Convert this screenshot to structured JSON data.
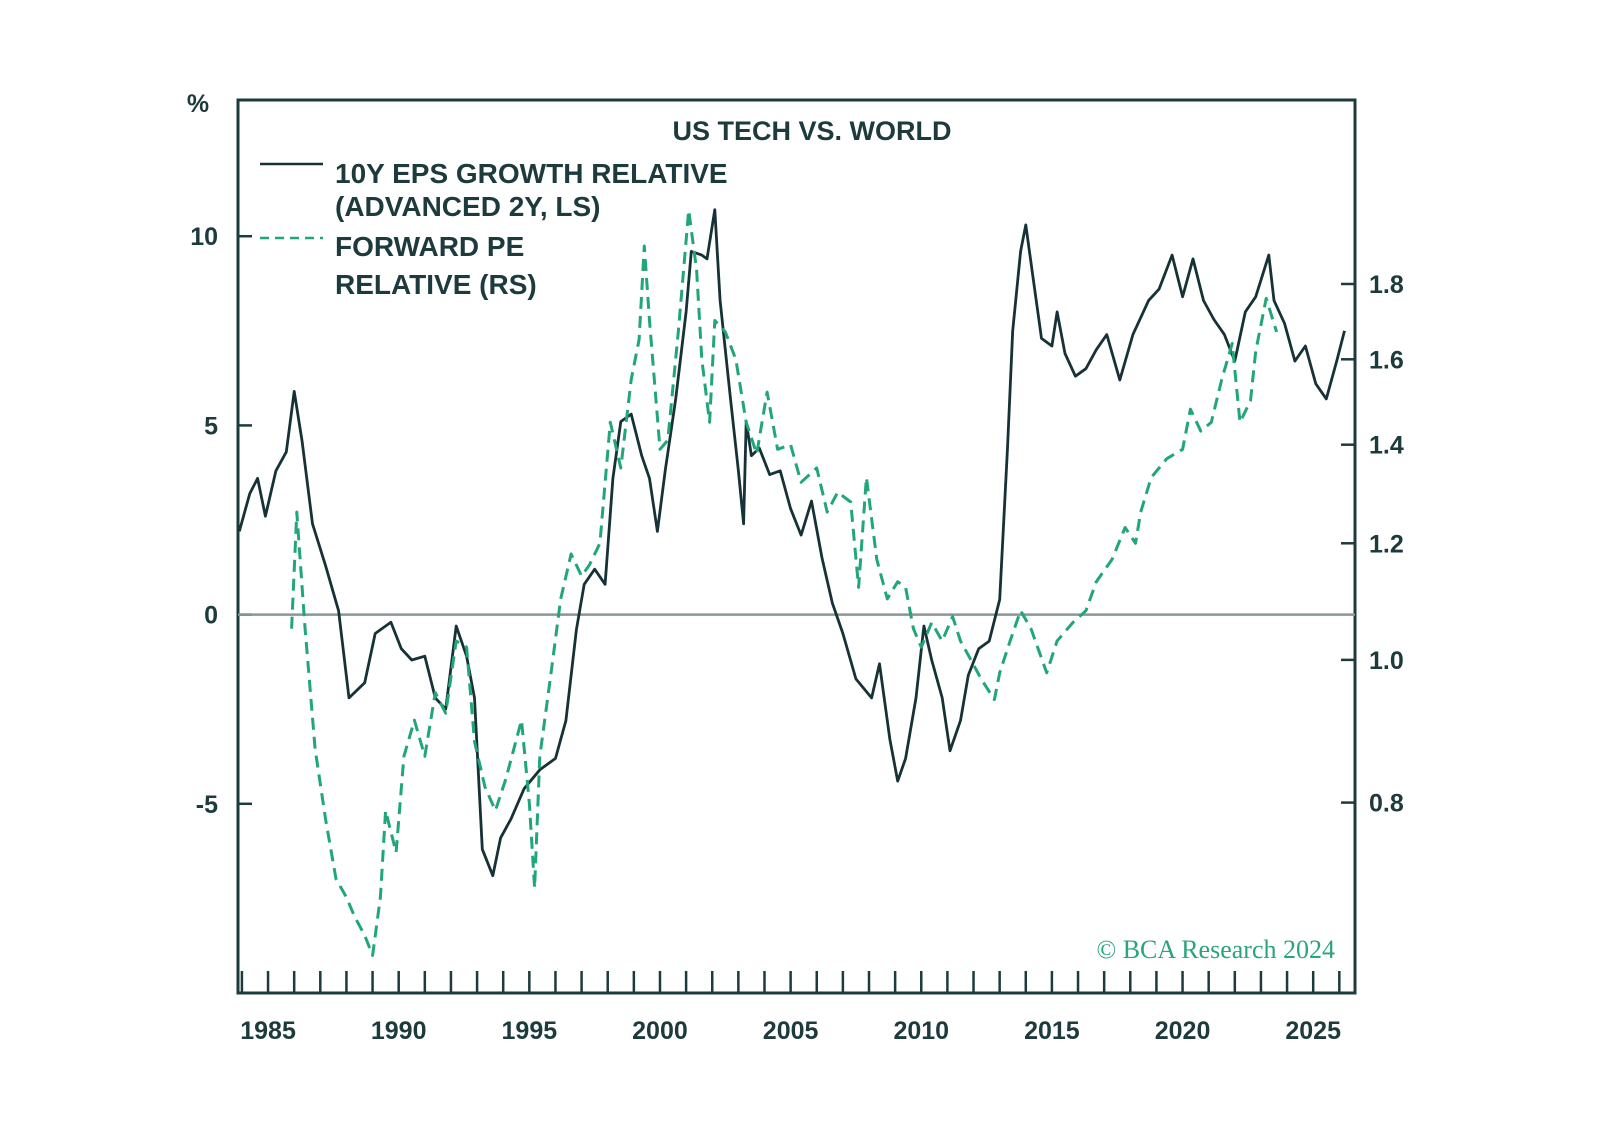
{
  "chart_data": {
    "type": "line",
    "title": "US TECH VS. WORLD",
    "left_axis_unit": "%",
    "x_range": [
      1983.85,
      2026.6
    ],
    "x_ticks": [
      1985,
      1990,
      1995,
      2000,
      2005,
      2010,
      2015,
      2020,
      2025
    ],
    "left_axis": {
      "range": [
        -10,
        13.6
      ],
      "ticks": [
        10,
        5,
        0,
        -5
      ],
      "tick_labels": [
        "10",
        "5",
        "0",
        "-5"
      ]
    },
    "right_axis": {
      "scale": "log",
      "range": [
        0.594,
        2.4
      ],
      "ticks": [
        1.8,
        1.6,
        1.4,
        1.2,
        1.0,
        0.8
      ],
      "tick_labels": [
        "1.8",
        "1.6",
        "1.4",
        "1.2",
        "1.0",
        "0.8"
      ]
    },
    "zero_line": true,
    "grid": false,
    "legend_placement": "top-left",
    "colors": {
      "eps": "#173236",
      "pe": "#21a67a",
      "axis": "#1d3a3c",
      "zero": "#8a9696"
    },
    "series": [
      {
        "name": "10Y EPS GROWTH RELATIVE (ADVANCED 2Y, LS)",
        "legend_lines": [
          "10Y EPS GROWTH RELATIVE",
          "(ADVANCED 2Y, LS)"
        ],
        "axis": "left",
        "style": "solid",
        "points": [
          [
            1983.9,
            2.2
          ],
          [
            1984.3,
            3.2
          ],
          [
            1984.6,
            3.6
          ],
          [
            1984.9,
            2.6
          ],
          [
            1985.3,
            3.8
          ],
          [
            1985.7,
            4.3
          ],
          [
            1986.0,
            5.9
          ],
          [
            1986.3,
            4.6
          ],
          [
            1986.7,
            2.4
          ],
          [
            1987.2,
            1.3
          ],
          [
            1987.7,
            0.1
          ],
          [
            1988.1,
            -2.2
          ],
          [
            1988.7,
            -1.8
          ],
          [
            1989.1,
            -0.5
          ],
          [
            1989.7,
            -0.2
          ],
          [
            1990.1,
            -0.9
          ],
          [
            1990.5,
            -1.2
          ],
          [
            1991.0,
            -1.1
          ],
          [
            1991.4,
            -2.2
          ],
          [
            1991.8,
            -2.5
          ],
          [
            1992.2,
            -0.3
          ],
          [
            1992.6,
            -1.1
          ],
          [
            1992.9,
            -2.2
          ],
          [
            1993.2,
            -6.2
          ],
          [
            1993.6,
            -6.9
          ],
          [
            1993.9,
            -5.9
          ],
          [
            1994.3,
            -5.4
          ],
          [
            1994.8,
            -4.6
          ],
          [
            1995.4,
            -4.1
          ],
          [
            1996.0,
            -3.8
          ],
          [
            1996.4,
            -2.8
          ],
          [
            1996.8,
            -0.4
          ],
          [
            1997.1,
            0.8
          ],
          [
            1997.5,
            1.2
          ],
          [
            1997.9,
            0.8
          ],
          [
            1998.2,
            3.6
          ],
          [
            1998.5,
            5.1
          ],
          [
            1998.9,
            5.3
          ],
          [
            1999.3,
            4.2
          ],
          [
            1999.6,
            3.6
          ],
          [
            1999.9,
            2.2
          ],
          [
            2000.2,
            3.8
          ],
          [
            2000.6,
            5.7
          ],
          [
            2001.0,
            8.0
          ],
          [
            2001.2,
            9.6
          ],
          [
            2001.6,
            9.5
          ],
          [
            2001.8,
            9.4
          ],
          [
            2002.1,
            10.7
          ],
          [
            2002.3,
            8.3
          ],
          [
            2002.7,
            5.7
          ],
          [
            2003.0,
            3.8
          ],
          [
            2003.2,
            2.4
          ],
          [
            2003.3,
            5.1
          ],
          [
            2003.5,
            4.2
          ],
          [
            2003.8,
            4.4
          ],
          [
            2004.2,
            3.7
          ],
          [
            2004.6,
            3.8
          ],
          [
            2005.0,
            2.8
          ],
          [
            2005.4,
            2.1
          ],
          [
            2005.8,
            3.0
          ],
          [
            2006.2,
            1.5
          ],
          [
            2006.6,
            0.3
          ],
          [
            2007.0,
            -0.5
          ],
          [
            2007.5,
            -1.7
          ],
          [
            2008.1,
            -2.2
          ],
          [
            2008.4,
            -1.3
          ],
          [
            2008.8,
            -3.3
          ],
          [
            2009.1,
            -4.4
          ],
          [
            2009.4,
            -3.8
          ],
          [
            2009.8,
            -2.2
          ],
          [
            2010.1,
            -0.3
          ],
          [
            2010.4,
            -1.2
          ],
          [
            2010.8,
            -2.2
          ],
          [
            2011.1,
            -3.6
          ],
          [
            2011.5,
            -2.8
          ],
          [
            2011.8,
            -1.6
          ],
          [
            2012.2,
            -0.9
          ],
          [
            2012.6,
            -0.7
          ],
          [
            2013.0,
            0.4
          ],
          [
            2013.3,
            4.4
          ],
          [
            2013.5,
            7.5
          ],
          [
            2013.8,
            9.6
          ],
          [
            2014.0,
            10.3
          ],
          [
            2014.3,
            8.8
          ],
          [
            2014.6,
            7.3
          ],
          [
            2015.0,
            7.1
          ],
          [
            2015.2,
            8.0
          ],
          [
            2015.5,
            6.9
          ],
          [
            2015.9,
            6.3
          ],
          [
            2016.3,
            6.5
          ],
          [
            2016.7,
            7.0
          ],
          [
            2017.1,
            7.4
          ],
          [
            2017.6,
            6.2
          ],
          [
            2018.1,
            7.4
          ],
          [
            2018.7,
            8.3
          ],
          [
            2019.1,
            8.6
          ],
          [
            2019.6,
            9.5
          ],
          [
            2020.0,
            8.4
          ],
          [
            2020.4,
            9.4
          ],
          [
            2020.8,
            8.3
          ],
          [
            2021.2,
            7.8
          ],
          [
            2021.6,
            7.4
          ],
          [
            2022.0,
            6.7
          ],
          [
            2022.4,
            8.0
          ],
          [
            2022.8,
            8.4
          ],
          [
            2023.3,
            9.5
          ],
          [
            2023.5,
            8.3
          ],
          [
            2023.9,
            7.7
          ],
          [
            2024.3,
            6.7
          ],
          [
            2024.7,
            7.1
          ],
          [
            2025.1,
            6.1
          ],
          [
            2025.5,
            5.7
          ],
          [
            2025.9,
            6.7
          ],
          [
            2026.2,
            7.5
          ]
        ]
      },
      {
        "name": "FORWARD PE RELATIVE (RS)",
        "legend_lines": [
          "FORWARD PE",
          "RELATIVE (RS)"
        ],
        "axis": "right",
        "style": "dashed",
        "points": [
          [
            1985.9,
            1.05
          ],
          [
            1986.1,
            1.26
          ],
          [
            1986.4,
            1.06
          ],
          [
            1986.8,
            0.87
          ],
          [
            1987.2,
            0.78
          ],
          [
            1987.6,
            0.71
          ],
          [
            1988.0,
            0.69
          ],
          [
            1988.3,
            0.67
          ],
          [
            1988.7,
            0.65
          ],
          [
            1989.0,
            0.63
          ],
          [
            1989.3,
            0.69
          ],
          [
            1989.5,
            0.79
          ],
          [
            1989.9,
            0.74
          ],
          [
            1990.2,
            0.86
          ],
          [
            1990.6,
            0.91
          ],
          [
            1991.0,
            0.86
          ],
          [
            1991.4,
            0.95
          ],
          [
            1991.8,
            0.92
          ],
          [
            1992.2,
            1.03
          ],
          [
            1992.6,
            1.02
          ],
          [
            1992.9,
            0.88
          ],
          [
            1993.3,
            0.82
          ],
          [
            1993.7,
            0.79
          ],
          [
            1994.1,
            0.83
          ],
          [
            1994.7,
            0.91
          ],
          [
            1995.0,
            0.8
          ],
          [
            1995.2,
            0.7
          ],
          [
            1995.4,
            0.86
          ],
          [
            1995.8,
            0.97
          ],
          [
            1996.2,
            1.1
          ],
          [
            1996.6,
            1.18
          ],
          [
            1997.0,
            1.14
          ],
          [
            1997.3,
            1.16
          ],
          [
            1997.7,
            1.2
          ],
          [
            1998.1,
            1.45
          ],
          [
            1998.5,
            1.35
          ],
          [
            1998.9,
            1.55
          ],
          [
            1999.2,
            1.65
          ],
          [
            1999.4,
            1.91
          ],
          [
            1999.6,
            1.7
          ],
          [
            2000.0,
            1.39
          ],
          [
            2000.3,
            1.41
          ],
          [
            2000.7,
            1.67
          ],
          [
            2001.1,
            2.02
          ],
          [
            2001.4,
            1.84
          ],
          [
            2001.6,
            1.6
          ],
          [
            2001.9,
            1.45
          ],
          [
            2002.1,
            1.7
          ],
          [
            2002.5,
            1.67
          ],
          [
            2002.9,
            1.6
          ],
          [
            2003.3,
            1.45
          ],
          [
            2003.7,
            1.38
          ],
          [
            2004.1,
            1.52
          ],
          [
            2004.5,
            1.39
          ],
          [
            2005.0,
            1.4
          ],
          [
            2005.4,
            1.32
          ],
          [
            2006.0,
            1.35
          ],
          [
            2006.4,
            1.26
          ],
          [
            2006.8,
            1.3
          ],
          [
            2007.3,
            1.28
          ],
          [
            2007.6,
            1.12
          ],
          [
            2007.9,
            1.33
          ],
          [
            2008.3,
            1.17
          ],
          [
            2008.7,
            1.1
          ],
          [
            2009.1,
            1.13
          ],
          [
            2009.4,
            1.12
          ],
          [
            2009.7,
            1.05
          ],
          [
            2010.0,
            1.02
          ],
          [
            2010.4,
            1.06
          ],
          [
            2010.8,
            1.03
          ],
          [
            2011.2,
            1.07
          ],
          [
            2011.5,
            1.03
          ],
          [
            2011.9,
            1.0
          ],
          [
            2012.3,
            0.97
          ],
          [
            2012.8,
            0.94
          ],
          [
            2013.0,
            0.98
          ],
          [
            2013.4,
            1.03
          ],
          [
            2013.8,
            1.08
          ],
          [
            2014.2,
            1.05
          ],
          [
            2014.8,
            0.98
          ],
          [
            2015.2,
            1.03
          ],
          [
            2015.8,
            1.06
          ],
          [
            2016.3,
            1.08
          ],
          [
            2016.7,
            1.13
          ],
          [
            2017.3,
            1.17
          ],
          [
            2017.8,
            1.23
          ],
          [
            2018.2,
            1.2
          ],
          [
            2018.4,
            1.26
          ],
          [
            2018.8,
            1.33
          ],
          [
            2019.4,
            1.37
          ],
          [
            2020.0,
            1.39
          ],
          [
            2020.3,
            1.48
          ],
          [
            2020.7,
            1.43
          ],
          [
            2021.1,
            1.45
          ],
          [
            2021.5,
            1.55
          ],
          [
            2021.9,
            1.64
          ],
          [
            2022.2,
            1.45
          ],
          [
            2022.6,
            1.5
          ],
          [
            2022.8,
            1.62
          ],
          [
            2023.2,
            1.76
          ],
          [
            2023.6,
            1.67
          ]
        ]
      }
    ],
    "watermark": "© BCA Research 2024"
  }
}
